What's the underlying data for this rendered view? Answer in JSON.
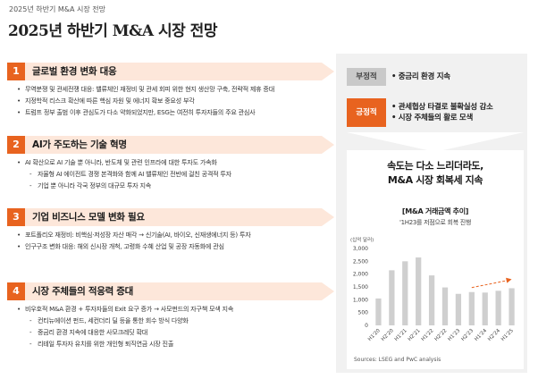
{
  "header": {
    "top_label": "2025년 하반기 M&A 시장 전망",
    "title": "2025년 하반기 M&A 시장 전망"
  },
  "sections": [
    {
      "num": "1",
      "title": "글로벌 환경 변화 대응",
      "items": [
        {
          "text": "무역분쟁 및 관세전쟁 대응: 밸류체인 재정비 및 관세 회피 위한 현지 생산망 구축, 전략적 제휴 증대",
          "sub": false
        },
        {
          "text": "지정학적 리스크 확산에 따른 핵심 자원 및 에너지 확보 중요성 부각",
          "sub": false
        },
        {
          "text": "트럼프 정부 출범 이후 관심도가 다소 약화되었지만, ESG는 여전히 투자자들의 주요 관심사",
          "sub": false
        }
      ]
    },
    {
      "num": "2",
      "title": "AI가 주도하는 기술 혁명",
      "items": [
        {
          "text": "AI 확산으로 AI 기술 뿐 아니라, 반도체 및 관련 인프라에 대한 투자도 가속화",
          "sub": false
        },
        {
          "text": "자율형 AI 에이전트 경쟁 본격화와 함께 AI 밸류체인 전반에 걸친 공격적 투자",
          "sub": true
        },
        {
          "text": "기업 뿐 아니라 각국 정부의 대규모 투자 지속",
          "sub": true
        }
      ]
    },
    {
      "num": "3",
      "title": "기업 비즈니스 모델 변화 필요",
      "items": [
        {
          "text": "포트폴리오 재정비: 비핵심·저성장 자산 매각 → 신기술(AI, 바이오, 신재생에너지 등) 투자",
          "sub": false
        },
        {
          "text": "인구구조 변화 대응: 해외 신시장 개척, 고령화 수혜 산업 및 공장 자동화에 관심",
          "sub": false
        }
      ]
    },
    {
      "num": "4",
      "title": "시장 주체들의 적응력 증대",
      "items": [
        {
          "text": "비우호적 M&A 환경 + 투자자들의 Exit 요구 증가 → 사모펀드의 자구책 모색 지속",
          "sub": false
        },
        {
          "text": "컨티뉴에이션 펀드, 세컨더리 딜 등을 통한 회수 방식 다양화",
          "sub": true
        },
        {
          "text": "중금리 환경 지속에 대응한 사모크레딧 확대",
          "sub": true
        },
        {
          "text": "리테일 투자자 유치를 위한 개인형 퇴직연금 시장 진출",
          "sub": true
        }
      ]
    }
  ],
  "panel": {
    "negative_label": "부정적",
    "negative_items": [
      "• 중금리 환경 지속"
    ],
    "positive_label": "긍정적",
    "positive_items": [
      "• 관세협상 타결로 불확실성 감소",
      "• 시장 주체들의 활로 모색"
    ],
    "headline_line1": "속도는 다소 느리더라도,",
    "headline_line2": "M&A 시장 회복세 지속",
    "chart_title": "[M&A 거래금액 추이]",
    "chart_subtitle": "'1H23를 저점으로 회복 진행",
    "source": "Sources: LSEG and PwC analysis"
  },
  "colors": {
    "accent": "#e8631f",
    "bar": "#cfcfcf",
    "panel_bg": "#f1f1f1"
  },
  "chart_data": {
    "type": "bar",
    "unit_label": "(십억 달러)",
    "categories": [
      "H1'20",
      "H2'20",
      "H1'21",
      "H2'21",
      "H1'22",
      "H2'22",
      "H1'23",
      "H2'23",
      "H1'24",
      "H2'24",
      "H1'25"
    ],
    "values": [
      1050,
      2150,
      2500,
      2650,
      1950,
      1480,
      1230,
      1300,
      1280,
      1350,
      1450
    ],
    "yticks": [
      "0",
      "500",
      "1,000",
      "1,500",
      "2,000",
      "2,500",
      "3,000"
    ],
    "ylim": [
      0,
      3000
    ],
    "trend_arrow": {
      "from_index": 7,
      "to_index": 10
    }
  }
}
